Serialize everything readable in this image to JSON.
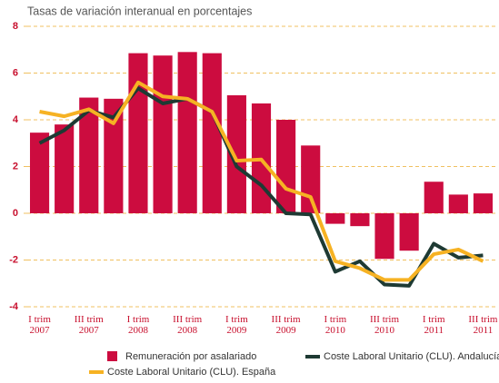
{
  "chart_data": {
    "type": "bar",
    "title": "Tasas de variación interanual en porcentajes",
    "categories": [
      "I trim 2007",
      null,
      "III trim 2007",
      null,
      "I trim 2008",
      null,
      "III trim 2008",
      null,
      "I trim 2009",
      null,
      "III trim 2009",
      null,
      "I trim 2010",
      null,
      "III trim 2010",
      null,
      "I trim 2011",
      null,
      "III trim 2011"
    ],
    "series": [
      {
        "name": "Remuneración por asalariado",
        "type": "bar",
        "color": "#cc0c3f",
        "values": [
          3.45,
          3.8,
          4.95,
          4.9,
          6.85,
          6.75,
          6.9,
          6.85,
          5.05,
          4.7,
          4.0,
          2.9,
          -0.45,
          -0.55,
          -1.95,
          -1.6,
          1.35,
          0.8,
          0.85
        ]
      },
      {
        "name": "Coste Laboral Unitario (CLU). Andalucía",
        "type": "line",
        "color": "#1e3a33",
        "values": [
          3.0,
          3.55,
          4.4,
          4.1,
          5.35,
          4.7,
          4.9,
          4.35,
          2.0,
          1.2,
          0.0,
          -0.05,
          -2.5,
          -2.05,
          -3.05,
          -3.1,
          -1.3,
          -1.9,
          -1.8
        ]
      },
      {
        "name": "Coste Laboral Unitario (CLU). España",
        "type": "line",
        "color": "#f6b223",
        "values": [
          4.35,
          4.15,
          4.45,
          3.85,
          5.6,
          5.0,
          4.9,
          4.35,
          2.25,
          2.3,
          1.05,
          0.7,
          -2.05,
          -2.35,
          -2.85,
          -2.85,
          -1.75,
          -1.55,
          -2.05
        ]
      }
    ],
    "ylim": [
      -4,
      8
    ],
    "yticks": [
      -4,
      -2,
      0,
      2,
      4,
      6,
      8
    ],
    "grid": true
  }
}
